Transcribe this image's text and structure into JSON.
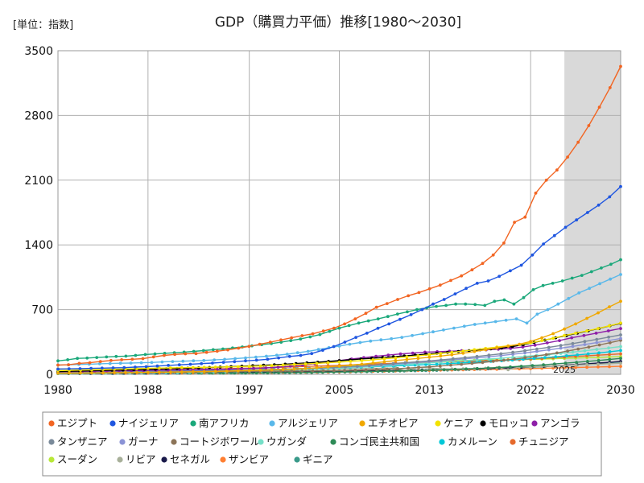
{
  "chart_data": {
    "type": "line",
    "title": "GDP（購買力平価）推移[1980～2030]",
    "unit_label": "[単位：指数]",
    "xlim": [
      1980,
      2030
    ],
    "ylim": [
      0,
      3500
    ],
    "x_ticks": [
      "1980",
      "1988",
      "1997",
      "2005",
      "2013",
      "2022",
      "2030"
    ],
    "y_ticks": [
      "0",
      "700",
      "1400",
      "2100",
      "2800",
      "3500"
    ],
    "forecast_start": 2025,
    "forecast_label": "2025",
    "grid": true,
    "legend_position": "bottom",
    "series": [
      {
        "name": "エジプト",
        "color": "#f26522",
        "values": [
          100,
          104,
          118,
          125,
          138,
          150,
          158,
          163,
          170,
          188,
          205,
          215,
          222,
          225,
          238,
          250,
          265,
          283,
          302,
          325,
          348,
          372,
          395,
          418,
          438,
          468,
          500,
          545,
          600,
          660,
          725,
          765,
          810,
          850,
          885,
          925,
          965,
          1015,
          1065,
          1130,
          1200,
          1290,
          1420,
          1645,
          1700,
          1960,
          2100,
          2210,
          2350,
          2510,
          2690,
          2890,
          3100,
          3330
        ]
      },
      {
        "name": "ナイジェリア",
        "color": "#1f56e0",
        "values": [
          56,
          59,
          61,
          64,
          67,
          70,
          72,
          78,
          83,
          90,
          97,
          103,
          109,
          116,
          122,
          130,
          137,
          145,
          153,
          163,
          178,
          193,
          205,
          225,
          260,
          300,
          348,
          400,
          445,
          498,
          545,
          595,
          645,
          700,
          760,
          810,
          870,
          930,
          985,
          1010,
          1060,
          1120,
          1180,
          1290,
          1410,
          1500,
          1590,
          1670,
          1750,
          1830,
          1920,
          2030
        ]
      },
      {
        "name": "南アフリカ",
        "color": "#1aa87a",
        "values": [
          145,
          158,
          172,
          176,
          182,
          188,
          193,
          197,
          205,
          214,
          220,
          227,
          233,
          240,
          248,
          257,
          266,
          274,
          285,
          296,
          308,
          321,
          333,
          347,
          365,
          382,
          405,
          430,
          465,
          500,
          528,
          555,
          578,
          600,
          625,
          652,
          676,
          700,
          718,
          735,
          745,
          760,
          760,
          755,
          745,
          790,
          805,
          760,
          830,
          915,
          960,
          985,
          1010,
          1040,
          1070,
          1110,
          1150,
          1190,
          1240
        ]
      },
      {
        "name": "アルジェリア",
        "color": "#59b8ea",
        "values": [
          100,
          103,
          107,
          110,
          114,
          117,
          120,
          122,
          125,
          128,
          134,
          138,
          142,
          146,
          150,
          156,
          162,
          170,
          178,
          186,
          196,
          206,
          218,
          233,
          248,
          268,
          288,
          306,
          326,
          344,
          360,
          373,
          385,
          400,
          420,
          440,
          460,
          480,
          500,
          520,
          540,
          555,
          570,
          585,
          600,
          555,
          650,
          700,
          760,
          820,
          880,
          930,
          980,
          1030,
          1080
        ]
      },
      {
        "name": "エチオピア",
        "color": "#f0a800",
        "values": [
          12,
          13,
          14,
          15,
          16,
          17,
          18,
          19,
          21,
          23,
          24,
          26,
          28,
          30,
          32,
          35,
          38,
          41,
          44,
          48,
          52,
          57,
          63,
          71,
          80,
          90,
          100,
          110,
          122,
          135,
          148,
          160,
          172,
          185,
          198,
          212,
          228,
          246,
          266,
          286,
          306,
          326,
          355,
          395,
          440,
          490,
          545,
          605,
          665,
          730,
          790
        ]
      },
      {
        "name": "ケニア",
        "color": "#f2e200",
        "values": [
          40,
          43,
          46,
          49,
          52,
          55,
          58,
          61,
          64,
          67,
          70,
          72,
          74,
          76,
          78,
          80,
          83,
          86,
          90,
          95,
          100,
          106,
          112,
          118,
          125,
          132,
          140,
          149,
          158,
          168,
          178,
          189,
          200,
          212,
          225,
          238,
          252,
          266,
          280,
          294,
          308,
          322,
          340,
          365,
          390,
          420,
          445,
          470,
          495,
          525,
          555
        ]
      },
      {
        "name": "モロッコ",
        "color": "#000000",
        "values": [
          30,
          33,
          36,
          38,
          41,
          44,
          47,
          50,
          53,
          56,
          60,
          63,
          66,
          70,
          74,
          78,
          83,
          88,
          93,
          98,
          104,
          110,
          117,
          124,
          131,
          139,
          148,
          157,
          166,
          174,
          182,
          190,
          199,
          208,
          218,
          227,
          237,
          247,
          256,
          265,
          275,
          285,
          300,
          320,
          345,
          370,
          395,
          420,
          445,
          470,
          495,
          525,
          550
        ]
      },
      {
        "name": "アンゴラ",
        "color": "#8e1fa8",
        "values": [
          28,
          30,
          32,
          34,
          36,
          38,
          40,
          42,
          44,
          46,
          48,
          50,
          52,
          54,
          56,
          60,
          64,
          70,
          78,
          88,
          100,
          115,
          130,
          148,
          165,
          180,
          195,
          208,
          220,
          230,
          240,
          245,
          250,
          255,
          260,
          265,
          272,
          280,
          295,
          315,
          340,
          365,
          395,
          420,
          445,
          470,
          495
        ]
      },
      {
        "name": "タンザニア",
        "color": "#7a8a9a",
        "values": [
          20,
          21,
          22,
          23,
          24,
          25,
          26,
          27,
          28,
          30,
          32,
          34,
          36,
          38,
          40,
          42,
          45,
          48,
          52,
          56,
          60,
          64,
          69,
          75,
          81,
          88,
          96,
          105,
          115,
          125,
          135,
          145,
          156,
          168,
          180,
          193,
          207,
          222,
          238,
          255,
          273,
          292,
          312,
          333,
          355,
          378,
          402,
          427
        ]
      },
      {
        "name": "ガーナ",
        "color": "#8b93d6",
        "values": [
          22,
          23,
          24,
          25,
          26,
          27,
          28,
          29,
          30,
          32,
          34,
          36,
          38,
          40,
          42,
          44,
          47,
          50,
          53,
          56,
          60,
          64,
          68,
          73,
          78,
          84,
          91,
          99,
          108,
          118,
          128,
          138,
          148,
          158,
          168,
          178,
          190,
          203,
          217,
          232,
          248,
          265,
          283,
          302,
          322,
          343,
          365,
          388
        ]
      },
      {
        "name": "コートジボワール",
        "color": "#8c7458",
        "values": [
          18,
          19,
          20,
          21,
          22,
          22,
          23,
          23,
          24,
          24,
          25,
          25,
          26,
          26,
          27,
          28,
          29,
          30,
          31,
          32,
          33,
          34,
          35,
          36,
          37,
          38,
          40,
          42,
          45,
          48,
          52,
          57,
          62,
          68,
          75,
          82,
          90,
          99,
          108,
          118,
          128,
          140,
          152,
          165,
          180,
          196,
          213,
          232,
          252,
          273,
          295,
          318,
          342,
          368
        ]
      },
      {
        "name": "ウガンダ",
        "color": "#76e0c8",
        "values": [
          10,
          11,
          12,
          13,
          14,
          15,
          16,
          17,
          18,
          19,
          20,
          22,
          24,
          26,
          28,
          30,
          33,
          36,
          40,
          44,
          48,
          53,
          58,
          64,
          70,
          77,
          84,
          92,
          100,
          108,
          116,
          124,
          132,
          140,
          148,
          156,
          165,
          174,
          184,
          194,
          204,
          214,
          226,
          240,
          255,
          270,
          285,
          300
        ]
      },
      {
        "name": "コンゴ民主共和国",
        "color": "#2e8b57",
        "values": [
          30,
          30,
          29,
          29,
          28,
          27,
          26,
          25,
          24,
          22,
          20,
          18,
          16,
          15,
          14,
          14,
          14,
          14,
          15,
          16,
          17,
          18,
          19,
          20,
          22,
          24,
          26,
          28,
          30,
          32,
          34,
          37,
          40,
          43,
          46,
          50,
          54,
          58,
          63,
          68,
          74,
          80,
          87,
          95,
          103,
          112,
          121,
          130,
          140,
          150,
          161,
          172
        ]
      },
      {
        "name": "カメルーン",
        "color": "#00c8d8",
        "values": [
          35,
          36,
          37,
          38,
          39,
          40,
          41,
          40,
          39,
          38,
          38,
          38,
          38,
          39,
          40,
          42,
          44,
          46,
          48,
          50,
          53,
          56,
          59,
          62,
          65,
          68,
          71,
          74,
          78,
          82,
          86,
          90,
          95,
          100,
          105,
          110,
          116,
          122,
          128,
          134,
          140,
          147,
          155,
          163,
          172,
          181,
          190,
          200,
          210,
          220,
          232,
          245,
          258
        ]
      },
      {
        "name": "チュニジア",
        "color": "#e66a2c",
        "values": [
          30,
          32,
          34,
          35,
          36,
          38,
          40,
          42,
          44,
          46,
          48,
          50,
          52,
          55,
          58,
          61,
          64,
          67,
          70,
          73,
          77,
          81,
          85,
          89,
          93,
          97,
          102,
          107,
          112,
          116,
          120,
          123,
          126,
          129,
          132,
          135,
          138,
          142,
          146,
          150,
          154,
          158,
          165,
          172,
          179,
          186,
          193,
          200,
          207,
          214,
          221
        ]
      },
      {
        "name": "スーダン",
        "color": "#b8e838",
        "values": [
          20,
          21,
          22,
          23,
          24,
          25,
          26,
          27,
          28,
          29,
          30,
          31,
          32,
          34,
          36,
          38,
          41,
          44,
          47,
          51,
          55,
          59,
          64,
          69,
          75,
          81,
          88,
          95,
          102,
          110,
          118,
          126,
          134,
          140,
          145,
          148,
          150,
          152,
          154,
          156,
          158,
          160,
          162,
          165,
          168,
          172,
          176,
          180,
          184,
          188,
          192
        ]
      },
      {
        "name": "リビア",
        "color": "#a8b09a",
        "values": [
          60,
          58,
          56,
          54,
          52,
          50,
          48,
          46,
          44,
          42,
          40,
          40,
          40,
          41,
          42,
          43,
          44,
          45,
          46,
          47,
          48,
          50,
          52,
          54,
          56,
          58,
          60,
          62,
          64,
          66,
          68,
          40,
          75,
          70,
          60,
          58,
          60,
          62,
          66,
          72,
          50,
          80,
          78,
          85,
          90,
          95,
          100,
          105,
          110,
          115,
          120
        ]
      },
      {
        "name": "セネガル",
        "color": "#1a1a4a",
        "values": [
          10,
          10,
          11,
          11,
          12,
          12,
          13,
          13,
          14,
          14,
          15,
          15,
          16,
          16,
          17,
          18,
          19,
          20,
          21,
          22,
          23,
          24,
          25,
          26,
          28,
          30,
          32,
          34,
          36,
          38,
          40,
          42,
          44,
          46,
          48,
          50,
          53,
          56,
          59,
          62,
          66,
          70,
          75,
          80,
          86,
          92,
          99,
          106,
          114,
          122,
          130,
          139
        ]
      },
      {
        "name": "ザンビア",
        "color": "#ff7f32",
        "values": [
          15,
          15,
          15,
          15,
          15,
          15,
          15,
          15,
          15,
          15,
          15,
          15,
          16,
          16,
          16,
          17,
          17,
          18,
          19,
          20,
          21,
          22,
          23,
          24,
          25,
          27,
          29,
          31,
          33,
          35,
          37,
          39,
          41,
          43,
          45,
          47,
          49,
          51,
          53,
          55,
          57,
          59,
          62,
          65,
          68,
          71,
          74,
          77,
          80,
          83,
          86
        ]
      },
      {
        "name": "ギニア",
        "color": "#3a9a8a",
        "values": [
          8,
          8,
          9,
          9,
          10,
          10,
          11,
          11,
          12,
          12,
          13,
          13,
          14,
          14,
          15,
          15,
          16,
          16,
          17,
          18,
          19,
          20,
          21,
          22,
          23,
          24,
          25,
          26,
          28,
          30,
          32,
          34,
          36,
          38,
          40,
          43,
          46,
          49,
          52,
          56,
          60,
          64,
          68,
          73,
          78,
          84,
          90,
          96,
          103,
          110,
          118,
          126,
          134
        ]
      }
    ]
  }
}
